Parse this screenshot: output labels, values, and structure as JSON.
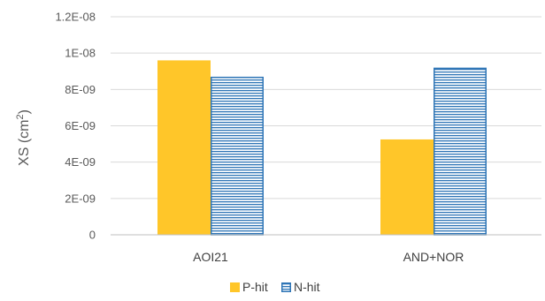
{
  "chart_data": {
    "type": "bar",
    "categories": [
      "AOI21",
      "AND+NOR"
    ],
    "series": [
      {
        "name": "P-hit",
        "values": [
          9.6e-09,
          5.25e-09
        ],
        "color": "#FFC629",
        "pattern": "solid"
      },
      {
        "name": "N-hit",
        "values": [
          8.7e-09,
          9.2e-09
        ],
        "color": "#2E75B6",
        "pattern": "horizontal-stripes"
      }
    ],
    "y_ticks": [
      0,
      2e-09,
      4e-09,
      6e-09,
      8e-09,
      1e-08,
      1.2e-08
    ],
    "y_tick_labels": [
      "0",
      "2E-09",
      "4E-09",
      "6E-09",
      "8E-09",
      "1E-08",
      "1.2E-08"
    ],
    "ylim": [
      0,
      1.2e-08
    ],
    "ylabel_base": "XS (cm",
    "ylabel_sup": "2",
    "ylabel_close": ")",
    "title": "",
    "xlabel": "",
    "grid": true,
    "gridline_color": "#D9D9D9",
    "legend_position": "bottom-center"
  }
}
